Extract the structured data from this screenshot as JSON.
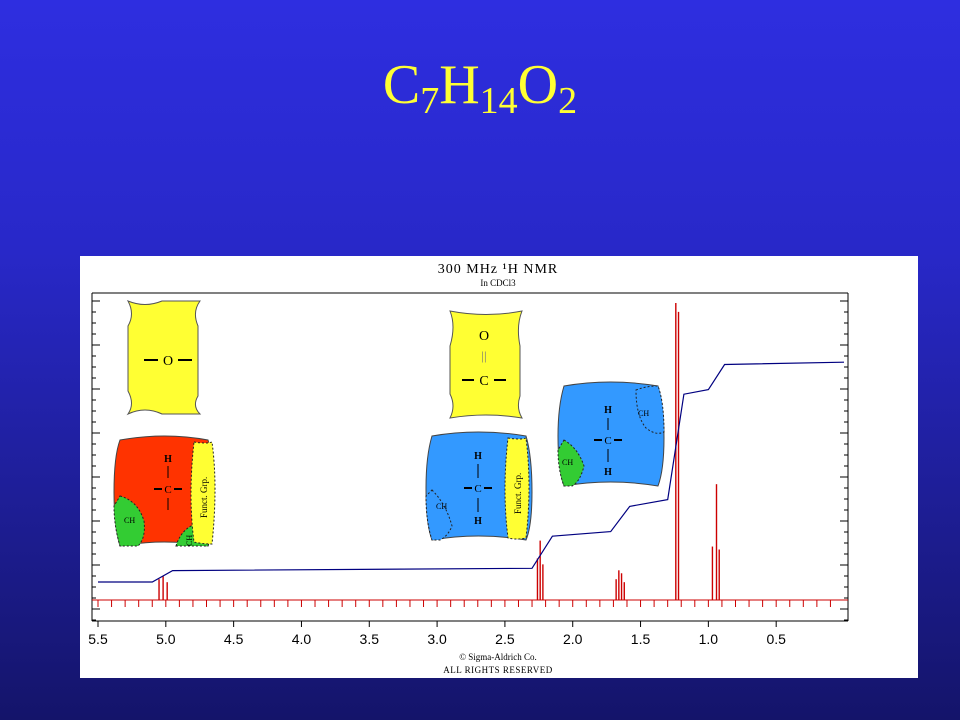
{
  "slide": {
    "formula_parts": [
      {
        "text": "C"
      },
      {
        "sub": "7"
      },
      {
        "text": "H"
      },
      {
        "sub": "14"
      },
      {
        "text": "O"
      },
      {
        "sub": "2"
      }
    ]
  },
  "spectrum": {
    "title": "300 MHz ¹H NMR",
    "solvent": "In CDCl3",
    "copyright": "© Sigma-Aldrich Co.",
    "rights": "ALL RIGHTS RESERVED",
    "colors": {
      "peaks": "#cc0000",
      "integral": "#000080",
      "yellow": "#ffff33",
      "red": "#ff3300",
      "blue": "#3399ff",
      "green": "#33cc33"
    }
  },
  "chart_data": {
    "type": "line",
    "xlabel": "",
    "ylabel": "",
    "x_reversed": true,
    "xlim": [
      5.5,
      0.0
    ],
    "x_ticks": [
      "5.5",
      "5.0",
      "4.5",
      "4.0",
      "3.5",
      "3.0",
      "2.5",
      "2.0",
      "1.5",
      "1.0",
      "0.5"
    ],
    "peaks": [
      {
        "ppm": 5.05,
        "height": 0.07
      },
      {
        "ppm": 5.02,
        "height": 0.08
      },
      {
        "ppm": 4.99,
        "height": 0.06
      },
      {
        "ppm": 2.26,
        "height": 0.14
      },
      {
        "ppm": 2.24,
        "height": 0.2
      },
      {
        "ppm": 2.22,
        "height": 0.12
      },
      {
        "ppm": 1.68,
        "height": 0.07
      },
      {
        "ppm": 1.66,
        "height": 0.1
      },
      {
        "ppm": 1.64,
        "height": 0.09
      },
      {
        "ppm": 1.62,
        "height": 0.06
      },
      {
        "ppm": 1.24,
        "height": 1.0
      },
      {
        "ppm": 1.22,
        "height": 0.97
      },
      {
        "ppm": 0.97,
        "height": 0.18
      },
      {
        "ppm": 0.94,
        "height": 0.39
      },
      {
        "ppm": 0.92,
        "height": 0.17
      }
    ],
    "integral": [
      {
        "ppm": 5.5,
        "value": 0.0
      },
      {
        "ppm": 5.1,
        "value": 0.0
      },
      {
        "ppm": 4.95,
        "value": 0.05
      },
      {
        "ppm": 2.3,
        "value": 0.06
      },
      {
        "ppm": 2.15,
        "value": 0.2
      },
      {
        "ppm": 1.72,
        "value": 0.22
      },
      {
        "ppm": 1.58,
        "value": 0.33
      },
      {
        "ppm": 1.3,
        "value": 0.36
      },
      {
        "ppm": 1.18,
        "value": 0.82
      },
      {
        "ppm": 1.0,
        "value": 0.84
      },
      {
        "ppm": 0.88,
        "value": 0.95
      },
      {
        "ppm": 0.0,
        "value": 0.96
      }
    ]
  },
  "fragments": {
    "ether": {
      "o_label": "O"
    },
    "carbonyl": {
      "o_label": "O",
      "c_label": "C",
      "bond": "||"
    },
    "methine_red": {
      "h_label": "H",
      "c_label": "C",
      "group_label": "Funct. Grp.",
      "ch3_left": "CH",
      "ch3_bottom": "CH"
    },
    "methylene_blue": {
      "h_top": "H",
      "c_label": "C",
      "h_bottom": "H",
      "group_label": "Funct. Grp.",
      "ch_label": "CH"
    },
    "methylene_blue2": {
      "h_top": "H",
      "c_label": "C",
      "h_bottom": "H",
      "ch_left": "CH",
      "ch_right": "CH"
    }
  }
}
